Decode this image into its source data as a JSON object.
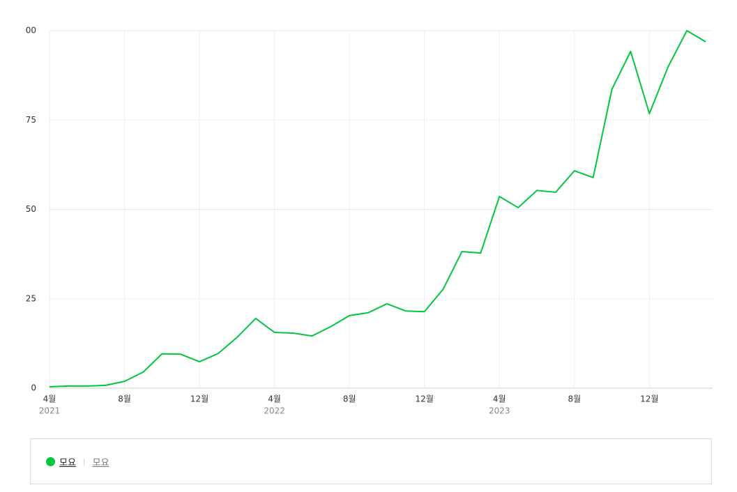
{
  "chart_data": {
    "type": "line",
    "categories": [
      "4월",
      null,
      null,
      null,
      "8월",
      null,
      null,
      null,
      "12월",
      null,
      null,
      null,
      "4월",
      null,
      null,
      null,
      "8월",
      null,
      null,
      null,
      "12월",
      null,
      null,
      null,
      "4월",
      null,
      null,
      null,
      "8월",
      null,
      null,
      null,
      "12월",
      null,
      null,
      null
    ],
    "category_years": [
      "2021",
      null,
      null,
      null,
      null,
      null,
      null,
      null,
      null,
      null,
      null,
      null,
      "2022",
      null,
      null,
      null,
      null,
      null,
      null,
      null,
      null,
      null,
      null,
      null,
      "2023",
      null,
      null,
      null,
      null,
      null,
      null,
      null,
      null,
      null,
      null,
      null
    ],
    "series": [
      {
        "name": "모요",
        "color": "#00c73c",
        "values": [
          0.4,
          0.6,
          0.6,
          0.8,
          1.9,
          4.5,
          9.6,
          9.5,
          7.4,
          9.7,
          14.2,
          19.5,
          15.6,
          15.4,
          14.6,
          17.2,
          20.3,
          21.1,
          23.6,
          21.6,
          21.4,
          27.7,
          38.2,
          37.8,
          53.6,
          50.5,
          55.3,
          54.8,
          60.8,
          58.9,
          83.6,
          94.2,
          76.8,
          89.9,
          100,
          96.9
        ]
      }
    ],
    "ylim": [
      0,
      100
    ],
    "yticks": [
      0,
      25,
      50,
      75,
      {
        "value": 100,
        "label": "00"
      }
    ],
    "grid": true,
    "legend_keyword": "모요"
  }
}
